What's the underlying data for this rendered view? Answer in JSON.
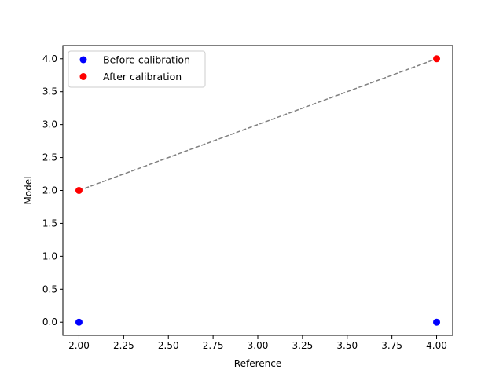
{
  "chart_data": {
    "type": "scatter",
    "title": "",
    "xlabel": "Reference",
    "ylabel": "Model",
    "xlim": [
      1.91,
      4.09
    ],
    "ylim": [
      -0.2,
      4.2
    ],
    "xticks": [
      "2.00",
      "2.25",
      "2.50",
      "2.75",
      "3.00",
      "3.25",
      "3.50",
      "3.75",
      "4.00"
    ],
    "yticks": [
      "0.0",
      "0.5",
      "1.0",
      "1.5",
      "2.0",
      "2.5",
      "3.0",
      "3.5",
      "4.0"
    ],
    "grid": false,
    "legend_position": "upper left",
    "series": [
      {
        "name": "Before calibration",
        "kind": "scatter",
        "color": "#0000ff",
        "x": [
          2.0,
          4.0
        ],
        "y": [
          0.0,
          0.0
        ]
      },
      {
        "name": "After calibration",
        "kind": "scatter",
        "color": "#ff0000",
        "x": [
          2.0,
          4.0
        ],
        "y": [
          2.0,
          4.0
        ]
      },
      {
        "kind": "line",
        "style": "dashed",
        "color": "#808080",
        "x": [
          2.0,
          4.0
        ],
        "y": [
          2.0,
          4.0
        ]
      }
    ]
  }
}
